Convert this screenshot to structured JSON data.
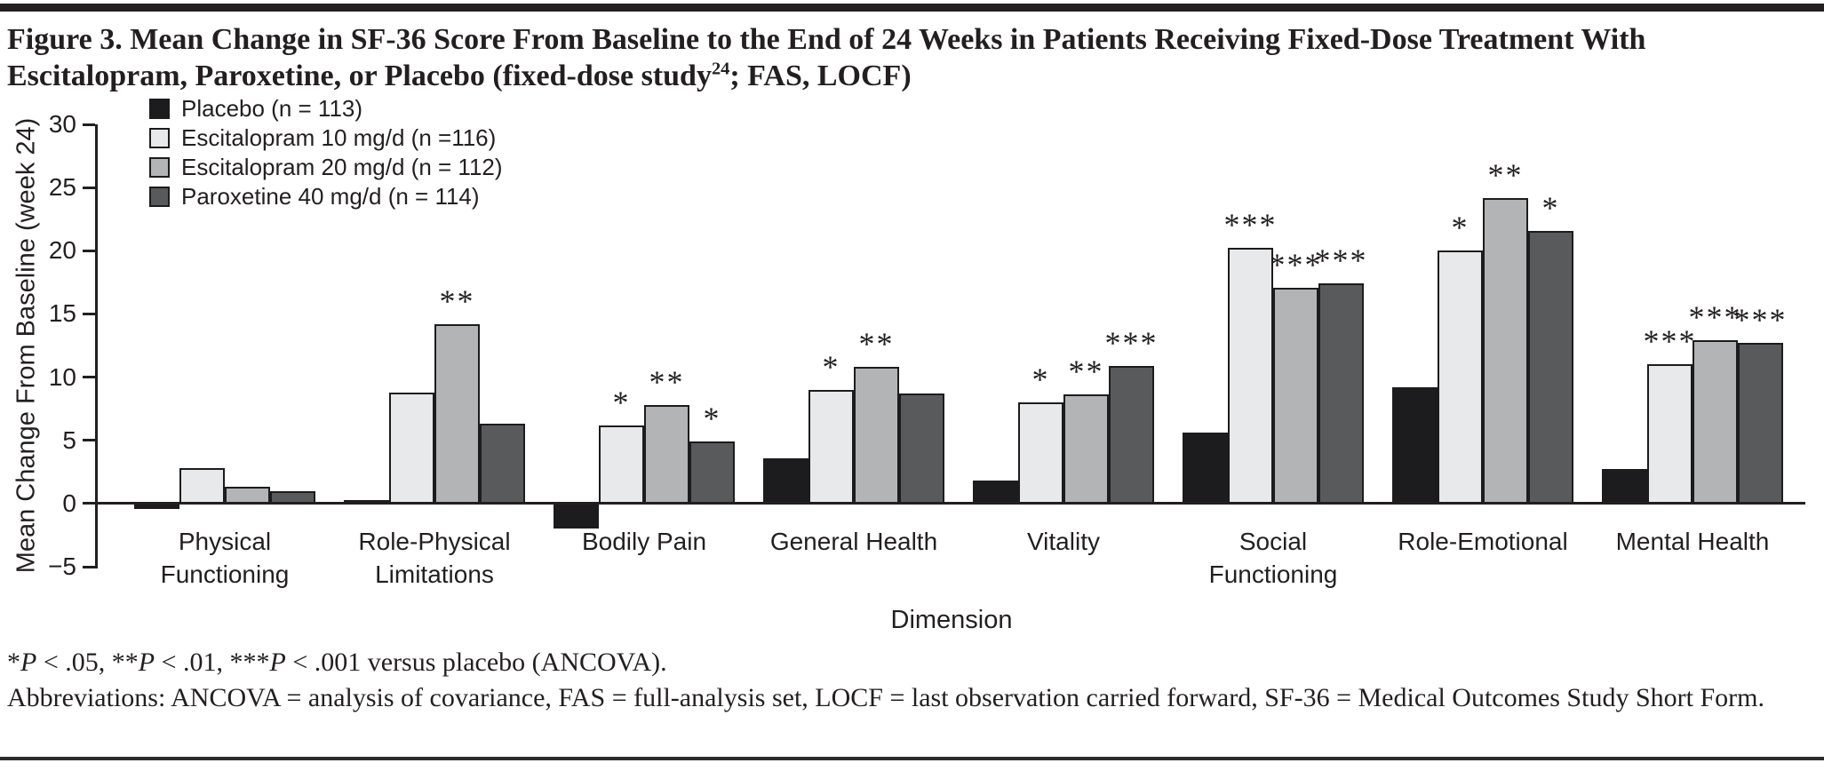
{
  "page": {
    "title": {
      "pre": "Figure 3. Mean Change in SF-36 Score From Baseline to the End of 24 Weeks in Patients Receiving Fixed-Dose Treatment With Escitalopram, Paroxetine, or Placebo (fixed-dose study",
      "sup": "24",
      "post": "; FAS, LOCF)"
    }
  },
  "chart_data": {
    "type": "bar",
    "title": "",
    "xlabel": "Dimension",
    "ylabel": "Mean Change From Baseline (week 24)",
    "ylim": [
      -5,
      30
    ],
    "yticks": [
      30,
      25,
      20,
      15,
      10,
      5,
      0,
      -5
    ],
    "grid": false,
    "legend_position": "top-left-inside",
    "categories": [
      "Physical\nFunctioning",
      "Role-Physical\nLimitations",
      "Bodily Pain",
      "General Health",
      "Vitality",
      "Social\nFunctioning",
      "Role-Emotional",
      "Mental Health"
    ],
    "series": [
      {
        "name": "Placebo (n = 113)",
        "color": "#1c1c1e",
        "values": [
          -0.4,
          0.2,
          -2.0,
          3.6,
          1.8,
          5.6,
          9.2,
          2.7
        ],
        "significance": [
          "",
          "",
          "",
          "",
          "",
          "",
          "",
          ""
        ]
      },
      {
        "name": "Escitalopram 10 mg/d (n =116)",
        "color": "#e8e9ea",
        "values": [
          2.8,
          8.8,
          6.2,
          9.0,
          8.0,
          20.2,
          20.0,
          11.0
        ],
        "significance": [
          "",
          "",
          "*",
          "*",
          "*",
          "***",
          "*",
          "***"
        ]
      },
      {
        "name": "Escitalopram 20 mg/d (n = 112)",
        "color": "#b2b4b6",
        "values": [
          1.3,
          14.2,
          7.8,
          10.8,
          8.6,
          17.1,
          24.2,
          12.9
        ],
        "significance": [
          "",
          "**",
          "**",
          "**",
          "**",
          "***",
          "**",
          "***"
        ]
      },
      {
        "name": "Paroxetine 40 mg/d (n = 114)",
        "color": "#595a5c",
        "values": [
          1.0,
          6.3,
          4.9,
          8.7,
          10.9,
          17.4,
          21.6,
          12.7
        ],
        "significance": [
          "",
          "",
          "*",
          "",
          "***",
          "***",
          "*",
          "***"
        ]
      }
    ]
  },
  "footnotes": {
    "significance_segments": [
      {
        "text": "*"
      },
      {
        "text": "P",
        "italic": true
      },
      {
        "text": " < .05, **"
      },
      {
        "text": "P",
        "italic": true
      },
      {
        "text": " < .01, ***"
      },
      {
        "text": "P",
        "italic": true
      },
      {
        "text": " < .001 versus placebo (ANCOVA)."
      }
    ],
    "abbreviations_line": "Abbreviations: ANCOVA = analysis of covariance, FAS = full-analysis set, LOCF = last observation carried forward, SF-36 = Medical Outcomes Study Short Form."
  }
}
